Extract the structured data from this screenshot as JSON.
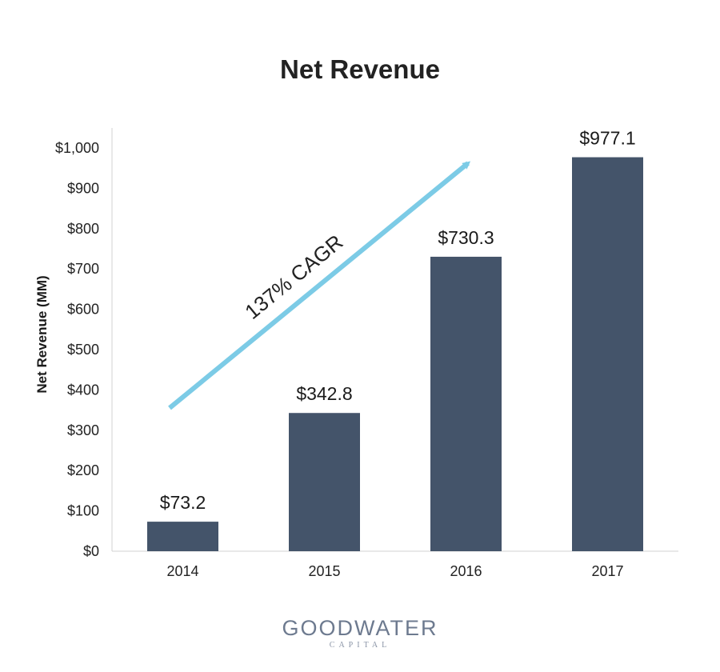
{
  "chart_data": {
    "type": "bar",
    "title": "Net Revenue",
    "ylabel": "Net Revenue (MM)",
    "xlabel": "",
    "categories": [
      "2014",
      "2015",
      "2016",
      "2017"
    ],
    "values": [
      73.2,
      342.8,
      730.3,
      977.1
    ],
    "data_labels": [
      "$73.2",
      "$342.8",
      "$730.3",
      "$977.1"
    ],
    "ylim": [
      0,
      1000
    ],
    "y_ticks": [
      0,
      100,
      200,
      300,
      400,
      500,
      600,
      700,
      800,
      900,
      1000
    ],
    "y_tick_labels": [
      "$0",
      "$100",
      "$200",
      "$300",
      "$400",
      "$500",
      "$600",
      "$700",
      "$800",
      "$900",
      "$1,000"
    ],
    "grid": false,
    "legend": "none",
    "bar_color": "#44546a",
    "annotation": {
      "text": "137% CAGR",
      "arrow_color": "#7ccbe6"
    }
  },
  "logo": {
    "main": "GOODWATER",
    "sub": "CAPITAL"
  }
}
